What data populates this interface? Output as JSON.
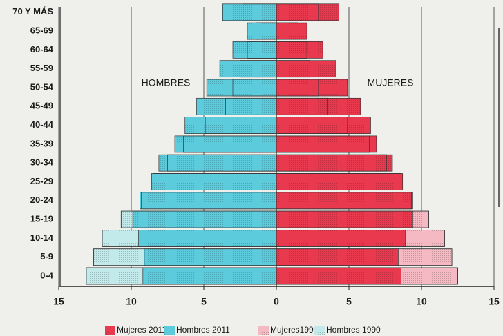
{
  "chart_data": {
    "type": "pyramid",
    "categories": [
      "0-4",
      "5-9",
      "10-14",
      "15-19",
      "20-24",
      "25-29",
      "30-34",
      "35-39",
      "40-44",
      "45-49",
      "50-54",
      "55-59",
      "60-64",
      "65-69",
      "70 Y MÁS"
    ],
    "series": [
      {
        "name": "Mujeres 2011",
        "color": "#e8394f",
        "side": "right",
        "year": 2011,
        "values": [
          8.6,
          8.4,
          8.9,
          9.4,
          9.4,
          8.7,
          8.0,
          6.9,
          6.5,
          5.8,
          4.9,
          4.1,
          3.2,
          2.1,
          4.3
        ]
      },
      {
        "name": "Hombres 2011",
        "color": "#5ccbdc",
        "side": "left",
        "year": 2011,
        "values": [
          9.2,
          9.1,
          9.5,
          9.9,
          9.4,
          8.6,
          8.1,
          7.0,
          6.3,
          5.5,
          4.8,
          3.9,
          3.0,
          2.0,
          3.7
        ]
      },
      {
        "name": "Mujeres1990",
        "color": "#f4b9c2",
        "side": "right",
        "year": 1990,
        "values": [
          12.5,
          12.1,
          11.6,
          10.5,
          9.3,
          8.6,
          7.6,
          6.4,
          4.9,
          3.5,
          2.9,
          2.3,
          2.1,
          1.5,
          2.9
        ]
      },
      {
        "name": "Hombres 1990",
        "color": "#c2eaeb",
        "side": "left",
        "year": 1990,
        "values": [
          13.1,
          12.6,
          12.0,
          10.7,
          9.3,
          8.5,
          7.5,
          6.4,
          4.9,
          3.5,
          3.0,
          2.5,
          2.0,
          1.4,
          2.3
        ]
      }
    ],
    "xlim": [
      -15,
      15
    ],
    "xticks": [
      {
        "value": -15,
        "label": "15"
      },
      {
        "value": -10,
        "label": "10"
      },
      {
        "value": -5,
        "label": "5"
      },
      0,
      5,
      10,
      15
    ],
    "grid": true,
    "annotations": [
      "HOMBRES",
      "MUJERES"
    ],
    "legend": "bottom"
  }
}
